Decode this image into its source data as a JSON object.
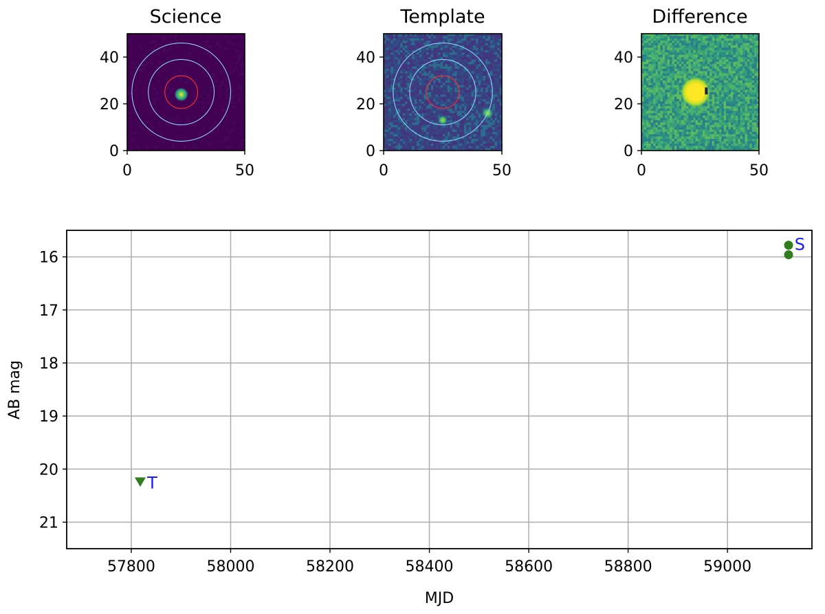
{
  "colors": {
    "marker": "#2f7d1f",
    "annotation": "#1a1aff",
    "grid": "#b0b0b0",
    "inner_aperture": "#ff3030",
    "outer_annulus": "#8fd3ff"
  },
  "chart_data": [
    {
      "type": "heatmap",
      "title": "Science",
      "xlim": [
        0,
        50
      ],
      "ylim": [
        0,
        50
      ],
      "xticks": [
        "0",
        "50"
      ],
      "yticks": [
        "0",
        "20",
        "40"
      ],
      "colormap": "viridis",
      "description_of_sources": [
        {
          "x": 23,
          "y": 24,
          "level": 1.0
        }
      ],
      "apertures": [
        {
          "color": "inner_aperture",
          "center": [
            23,
            25
          ],
          "radius": 7
        },
        {
          "color": "outer_annulus",
          "center": [
            23,
            25
          ],
          "radius": 14
        },
        {
          "color": "outer_annulus",
          "center": [
            23,
            25
          ],
          "radius": 21
        }
      ]
    },
    {
      "type": "heatmap",
      "title": "Template",
      "xlim": [
        0,
        50
      ],
      "ylim": [
        0,
        50
      ],
      "xticks": [
        "0",
        "50"
      ],
      "yticks": [
        "0",
        "20",
        "40"
      ],
      "colormap": "viridis",
      "description_of_sources": [
        {
          "x": 44,
          "y": 16,
          "level": 0.6
        },
        {
          "x": 25,
          "y": 13,
          "level": 0.3
        }
      ],
      "apertures": [
        {
          "color": "inner_aperture",
          "center": [
            25,
            25
          ],
          "radius": 7
        },
        {
          "color": "outer_annulus",
          "center": [
            25,
            25
          ],
          "radius": 14
        },
        {
          "color": "outer_annulus",
          "center": [
            25,
            25
          ],
          "radius": 21
        }
      ]
    },
    {
      "type": "heatmap",
      "title": "Difference",
      "xlim": [
        0,
        50
      ],
      "ylim": [
        0,
        50
      ],
      "xticks": [
        "0",
        "50"
      ],
      "yticks": [
        "0",
        "20",
        "40"
      ],
      "colormap": "viridis",
      "description_of_sources": [
        {
          "x": 23,
          "y": 25,
          "level": 1.0
        }
      ]
    },
    {
      "type": "scatter",
      "title": "",
      "xlabel": "MJD",
      "ylabel": "AB mag",
      "xlim": [
        57670,
        59170
      ],
      "ylim": [
        21.5,
        15.5
      ],
      "y_inverted": true,
      "grid": true,
      "xticks": [
        "57800",
        "58000",
        "58200",
        "58400",
        "58600",
        "58800",
        "59000"
      ],
      "yticks": [
        "16",
        "17",
        "18",
        "19",
        "20",
        "21"
      ],
      "series": [
        {
          "marker": "circle",
          "points": [
            {
              "x": 59123,
              "y": 15.78
            },
            {
              "x": 59123,
              "y": 15.96
            }
          ]
        },
        {
          "marker": "triangle-down",
          "points": [
            {
              "x": 57818,
              "y": 20.24
            }
          ]
        }
      ],
      "annotations": [
        {
          "text": "S",
          "x": 59135,
          "y": 15.75
        },
        {
          "text": "T",
          "x": 57832,
          "y": 20.25
        }
      ]
    }
  ]
}
